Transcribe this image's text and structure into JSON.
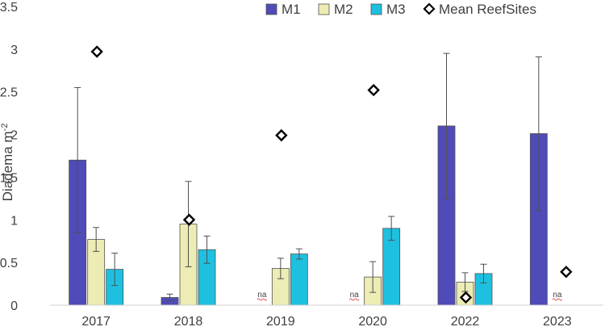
{
  "chart_data": {
    "type": "bar",
    "title": "",
    "xlabel": "",
    "ylabel": "Diadema m",
    "ylabel_superscript": "-2",
    "ylim": [
      0,
      3.5
    ],
    "yticks": [
      "0",
      "0.5",
      "1",
      "1.5",
      "2",
      "2.5",
      "3",
      "3.5"
    ],
    "grid": false,
    "legend_position": "top-right",
    "categories": [
      "2017",
      "2018",
      "2019",
      "2020",
      "2022",
      "2023"
    ],
    "series": [
      {
        "name": "M1",
        "color": "#4f4bb8",
        "values": [
          1.7,
          0.09,
          null,
          null,
          2.1,
          2.01
        ],
        "error": [
          0.85,
          0.04,
          null,
          null,
          0.85,
          0.9
        ],
        "na_label": "na",
        "na": [
          false,
          false,
          true,
          true,
          false,
          false
        ]
      },
      {
        "name": "M2",
        "color": "#ececb4",
        "values": [
          0.77,
          0.95,
          0.43,
          0.33,
          0.27,
          null
        ],
        "error": [
          0.14,
          0.5,
          0.12,
          0.18,
          0.11,
          null
        ],
        "na_label": "na",
        "na": [
          false,
          false,
          false,
          false,
          false,
          true
        ]
      },
      {
        "name": "M3",
        "color": "#1ec0e0",
        "values": [
          0.42,
          0.65,
          0.6,
          0.9,
          0.37,
          null
        ],
        "error": [
          0.19,
          0.16,
          0.06,
          0.14,
          0.11,
          null
        ],
        "na_label": "na",
        "na": [
          false,
          false,
          false,
          false,
          false,
          false
        ]
      }
    ],
    "markers": {
      "name": "Mean ReefSites",
      "shape": "diamond",
      "values": [
        2.97,
        1.0,
        1.99,
        2.52,
        0.09,
        0.39
      ]
    }
  }
}
